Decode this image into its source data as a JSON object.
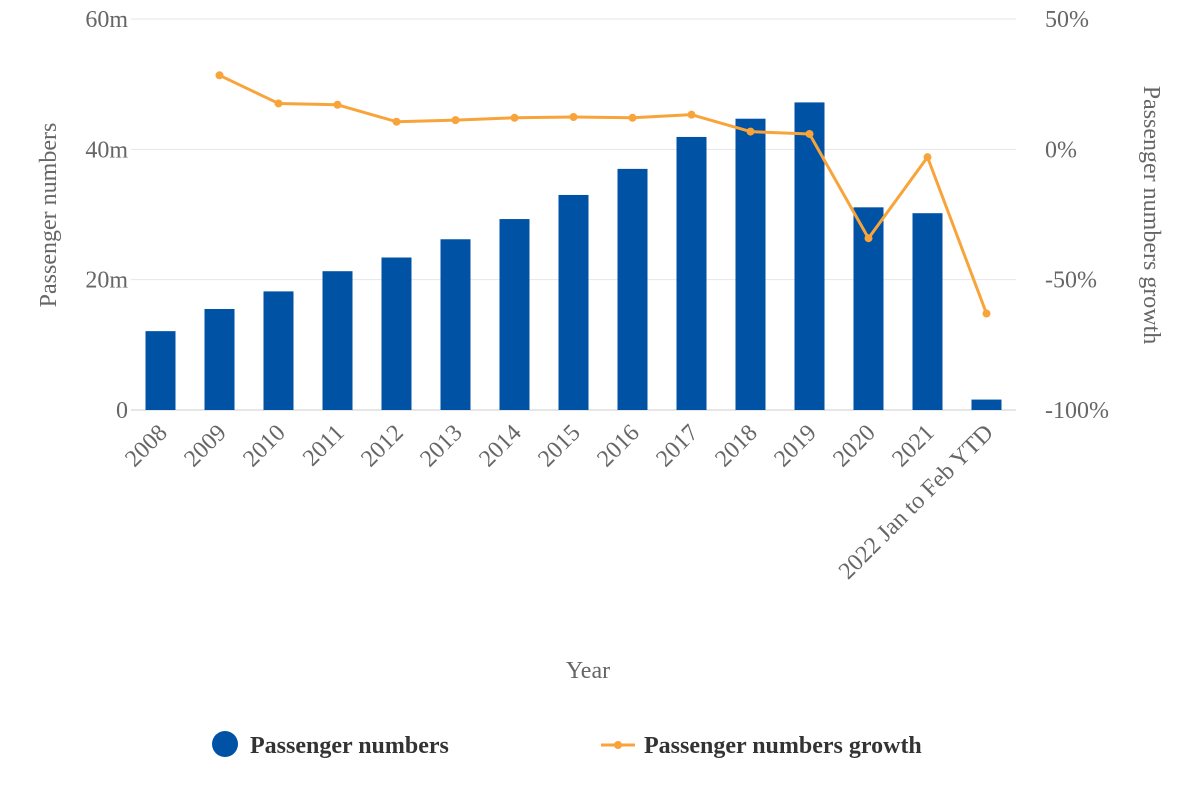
{
  "chart_data": {
    "type": "bar",
    "categories": [
      "2008",
      "2009",
      "2010",
      "2011",
      "2012",
      "2013",
      "2014",
      "2015",
      "2016",
      "2017",
      "2018",
      "2019",
      "2020",
      "2021",
      "2022 Jan to Feb YTD"
    ],
    "series": [
      {
        "name": "Passenger numbers",
        "type": "bar",
        "axis": "left",
        "color": "#0052a5",
        "values": [
          12.1,
          15.5,
          18.2,
          21.3,
          23.4,
          26.2,
          29.3,
          33.0,
          37.0,
          41.9,
          44.7,
          47.2,
          31.1,
          30.2,
          1.6
        ]
      },
      {
        "name": "Passenger numbers growth",
        "type": "line",
        "axis": "right",
        "color": "#f9a43a",
        "values": [
          null,
          28.4,
          17.6,
          17.1,
          10.6,
          11.2,
          12.1,
          12.4,
          12.1,
          13.3,
          6.8,
          5.9,
          -34.1,
          -3.0,
          -63.0
        ]
      }
    ],
    "left_axis": {
      "title": "Passenger numbers",
      "ticks": [
        "0",
        "20m",
        "40m",
        "60m"
      ],
      "tick_values": [
        0,
        20,
        40,
        60
      ],
      "ylim": [
        0,
        60
      ]
    },
    "right_axis": {
      "title": "Passenger numbers growth",
      "ticks": [
        "-100%",
        "-50%",
        "0%",
        "50%"
      ],
      "tick_values": [
        -100,
        -50,
        0,
        50
      ],
      "ylim": [
        -100,
        50
      ]
    },
    "xlabel": "Year",
    "grid": true,
    "legend_position": "bottom-center"
  }
}
